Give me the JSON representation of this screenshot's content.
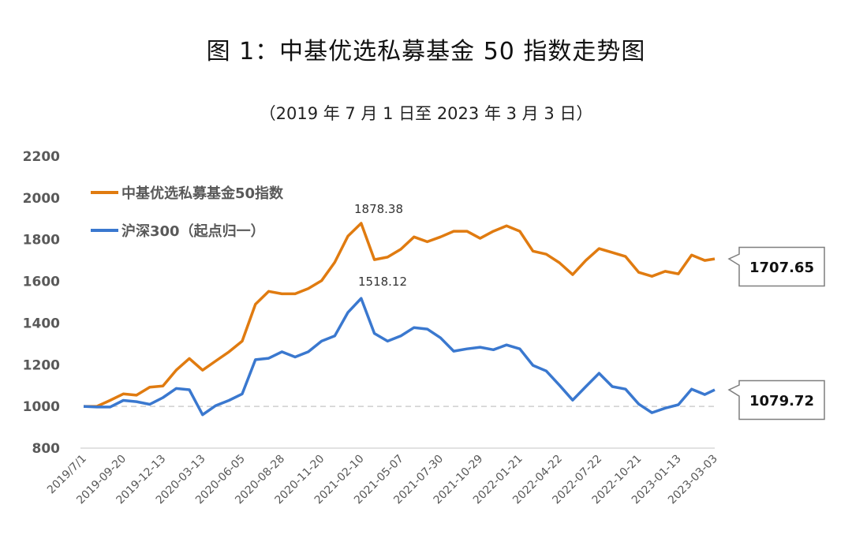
{
  "title": "图 1：中基优选私募基金 50 指数走势图",
  "subtitle": "（2019 年 7 月 1 日至 2023 年 3 月 3 日）",
  "chart_data": {
    "type": "line",
    "title": "图 1：中基优选私募基金 50 指数走势图",
    "subtitle": "（2019 年 7 月 1 日至 2023 年 3 月 3 日）",
    "xlabel": "",
    "ylabel": "",
    "ylim": [
      800,
      2200
    ],
    "yticks": [
      800,
      1000,
      1200,
      1400,
      1600,
      1800,
      2000,
      2200
    ],
    "x_unit": "weeks since 2019-07-01",
    "xlim": [
      0,
      191
    ],
    "xticks": [
      {
        "week": 0,
        "label": "2019/7/1"
      },
      {
        "week": 12,
        "label": "2019-09-20"
      },
      {
        "week": 24,
        "label": "2019-12-13"
      },
      {
        "week": 36,
        "label": "2020-03-13"
      },
      {
        "week": 48,
        "label": "2020-06-05"
      },
      {
        "week": 60,
        "label": "2020-08-28"
      },
      {
        "week": 72,
        "label": "2020-11-20"
      },
      {
        "week": 84,
        "label": "2021-02-10"
      },
      {
        "week": 96,
        "label": "2021-05-07"
      },
      {
        "week": 108,
        "label": "2021-07-30"
      },
      {
        "week": 120,
        "label": "2021-10-29"
      },
      {
        "week": 132,
        "label": "2022-01-21"
      },
      {
        "week": 144,
        "label": "2022-04-22"
      },
      {
        "week": 156,
        "label": "2022-07-22"
      },
      {
        "week": 168,
        "label": "2022-10-21"
      },
      {
        "week": 180,
        "label": "2023-01-13"
      },
      {
        "week": 191,
        "label": "2023-03-03"
      }
    ],
    "x": [
      0,
      4,
      8,
      12,
      16,
      20,
      24,
      28,
      32,
      36,
      40,
      44,
      48,
      52,
      56,
      60,
      64,
      68,
      72,
      76,
      80,
      84,
      88,
      92,
      96,
      100,
      104,
      108,
      112,
      116,
      120,
      124,
      128,
      132,
      136,
      140,
      144,
      148,
      152,
      156,
      160,
      164,
      168,
      172,
      176,
      180,
      184,
      188,
      191
    ],
    "series": [
      {
        "name": "中基优选私募基金50指数",
        "color": "#E07B10",
        "values": [
          1000,
          1000,
          1029,
          1060,
          1054,
          1092,
          1098,
          1174,
          1230,
          1174,
          1218,
          1262,
          1313,
          1490,
          1552,
          1540,
          1540,
          1565,
          1603,
          1691,
          1817,
          1878.38,
          1704,
          1716,
          1754,
          1813,
          1790,
          1813,
          1840,
          1840,
          1806,
          1840,
          1866,
          1840,
          1745,
          1730,
          1689,
          1632,
          1700,
          1757,
          1738,
          1719,
          1643,
          1624,
          1648,
          1636,
          1726,
          1700,
          1707.65
        ]
      },
      {
        "name": "沪深300（起点归一）",
        "color": "#3A78CF",
        "values": [
          1000,
          997,
          997,
          1029,
          1023,
          1010,
          1042,
          1086,
          1080,
          960,
          1004,
          1029,
          1060,
          1224,
          1231,
          1262,
          1237,
          1262,
          1313,
          1338,
          1451,
          1518.12,
          1350,
          1313,
          1338,
          1378,
          1371,
          1329,
          1265,
          1276,
          1284,
          1272,
          1295,
          1276,
          1197,
          1170,
          1102,
          1030,
          1095,
          1159,
          1095,
          1083,
          1011,
          970,
          992,
          1008,
          1083,
          1057,
          1079.72
        ]
      }
    ],
    "baseline": 1000,
    "annotations": {
      "peak_orange": "1878.38",
      "peak_blue": "1518.12",
      "end_orange": "1707.65",
      "end_blue": "1079.72"
    },
    "legend_position": "top-left",
    "grid": false
  }
}
